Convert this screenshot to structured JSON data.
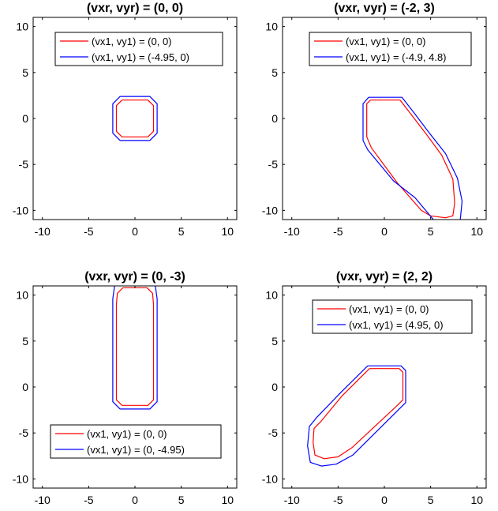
{
  "chart_data": [
    {
      "type": "line",
      "title": "(vxr, vyr) = (0, 0)",
      "xlim": [
        -11,
        11
      ],
      "ylim": [
        -11,
        11
      ],
      "xticks": [
        -10,
        -5,
        0,
        5,
        10
      ],
      "yticks": [
        -10,
        -5,
        0,
        5,
        10
      ],
      "grid": false,
      "legend_position": "top",
      "series": [
        {
          "name": "(vx1, vy1) = (0, 0)",
          "color": "#ff0000",
          "x": [
            -1.4,
            1.4,
            2.0,
            2.0,
            1.4,
            -1.4,
            -2.0,
            -2.0,
            -1.4
          ],
          "y": [
            2.0,
            2.0,
            1.4,
            -1.4,
            -2.0,
            -2.0,
            -1.4,
            1.4,
            2.0
          ]
        },
        {
          "name": "(vx1, vy1) = (-4.95, 0)",
          "color": "#0000ff",
          "x": [
            -1.6,
            1.6,
            2.4,
            2.4,
            1.6,
            -1.6,
            -2.4,
            -2.4,
            -1.6
          ],
          "y": [
            2.4,
            2.4,
            1.6,
            -1.6,
            -2.4,
            -2.4,
            -1.6,
            1.6,
            2.4
          ]
        }
      ]
    },
    {
      "type": "line",
      "title": "(vxr, vyr) = (-2, 3)",
      "xlim": [
        -11,
        11
      ],
      "ylim": [
        -11,
        11
      ],
      "xticks": [
        -10,
        -5,
        0,
        5,
        10
      ],
      "yticks": [
        -10,
        -5,
        0,
        5,
        10
      ],
      "grid": false,
      "legend_position": "top",
      "series": [
        {
          "name": "(vx1, vy1) = (0, 0)",
          "color": "#ff0000",
          "x": [
            -1.5,
            1.7,
            3.0,
            4.6,
            6.2,
            7.4,
            7.6,
            7.4,
            6.6,
            5.0,
            4.0,
            1.4,
            -1.4,
            -1.9,
            -1.9,
            -1.5
          ],
          "y": [
            2.0,
            2.0,
            0.3,
            -1.8,
            -4.0,
            -6.6,
            -9.2,
            -10.6,
            -10.8,
            -10.6,
            -10.0,
            -7.0,
            -3.2,
            -2.0,
            1.6,
            2.0
          ]
        },
        {
          "name": "(vx1, vy1) = (-4.9, 4.8)",
          "color": "#0000ff",
          "x": [
            -1.7,
            1.9,
            3.3,
            4.8,
            6.6,
            7.9,
            8.4,
            8.2,
            7.6,
            5.8,
            3.3,
            1.0,
            -1.8,
            -2.3,
            -2.3,
            -1.7
          ],
          "y": [
            2.3,
            2.3,
            0.5,
            -1.5,
            -3.8,
            -6.5,
            -9.0,
            -11.0,
            -11.6,
            -11.6,
            -8.6,
            -6.8,
            -3.4,
            -2.4,
            1.6,
            2.3
          ]
        }
      ]
    },
    {
      "type": "line",
      "title": "(vxr, vyr) = (0, -3)",
      "xlim": [
        -11,
        11
      ],
      "ylim": [
        -11,
        11
      ],
      "xticks": [
        -10,
        -5,
        0,
        5,
        10
      ],
      "yticks": [
        -10,
        -5,
        0,
        5,
        10
      ],
      "grid": false,
      "legend_position": "bottom",
      "series": [
        {
          "name": "(vx1, vy1) = (0, 0)",
          "color": "#ff0000",
          "x": [
            -1.3,
            1.3,
            1.9,
            2.0,
            2.0,
            1.4,
            -1.4,
            -2.0,
            -2.0,
            -1.9,
            -1.3
          ],
          "y": [
            10.8,
            10.8,
            10.2,
            9.0,
            -1.4,
            -2.0,
            -2.0,
            -1.4,
            9.0,
            10.2,
            10.8
          ]
        },
        {
          "name": "(vx1, vy1) = (0, -4.95)",
          "color": "#0000ff",
          "x": [
            -1.5,
            1.5,
            2.2,
            2.4,
            2.4,
            1.6,
            -1.6,
            -2.4,
            -2.4,
            -2.2,
            -1.5
          ],
          "y": [
            11.6,
            11.6,
            11.0,
            9.6,
            -1.6,
            -2.4,
            -2.4,
            -1.6,
            9.6,
            11.0,
            11.6
          ]
        }
      ]
    },
    {
      "type": "line",
      "title": "(vxr, vyr) = (2, 2)",
      "xlim": [
        -11,
        11
      ],
      "ylim": [
        -11,
        11
      ],
      "xticks": [
        -10,
        -5,
        0,
        5,
        10
      ],
      "yticks": [
        -10,
        -5,
        0,
        5,
        10
      ],
      "grid": false,
      "legend_position": "top-right",
      "series": [
        {
          "name": "(vx1, vy1) = (0, 0)",
          "color": "#ff0000",
          "x": [
            -1.6,
            1.6,
            2.0,
            2.0,
            1.4,
            -3.5,
            -5.0,
            -6.5,
            -7.5,
            -7.7,
            -7.6,
            -6.9,
            -4.6,
            -1.6
          ],
          "y": [
            2.0,
            2.0,
            1.6,
            -1.4,
            -2.0,
            -6.6,
            -7.6,
            -7.8,
            -7.4,
            -6.0,
            -4.5,
            -3.8,
            -1.0,
            2.0
          ]
        },
        {
          "name": "(vx1, vy1) = (4.95, 0)",
          "color": "#0000ff",
          "x": [
            -1.8,
            1.8,
            2.3,
            2.3,
            1.6,
            -3.4,
            -5.2,
            -6.8,
            -8.0,
            -8.3,
            -8.1,
            -7.3,
            -4.8,
            -1.8
          ],
          "y": [
            2.3,
            2.3,
            1.8,
            -1.7,
            -2.4,
            -7.4,
            -8.4,
            -8.6,
            -8.2,
            -6.4,
            -4.3,
            -3.3,
            -0.7,
            2.3
          ]
        }
      ]
    }
  ]
}
